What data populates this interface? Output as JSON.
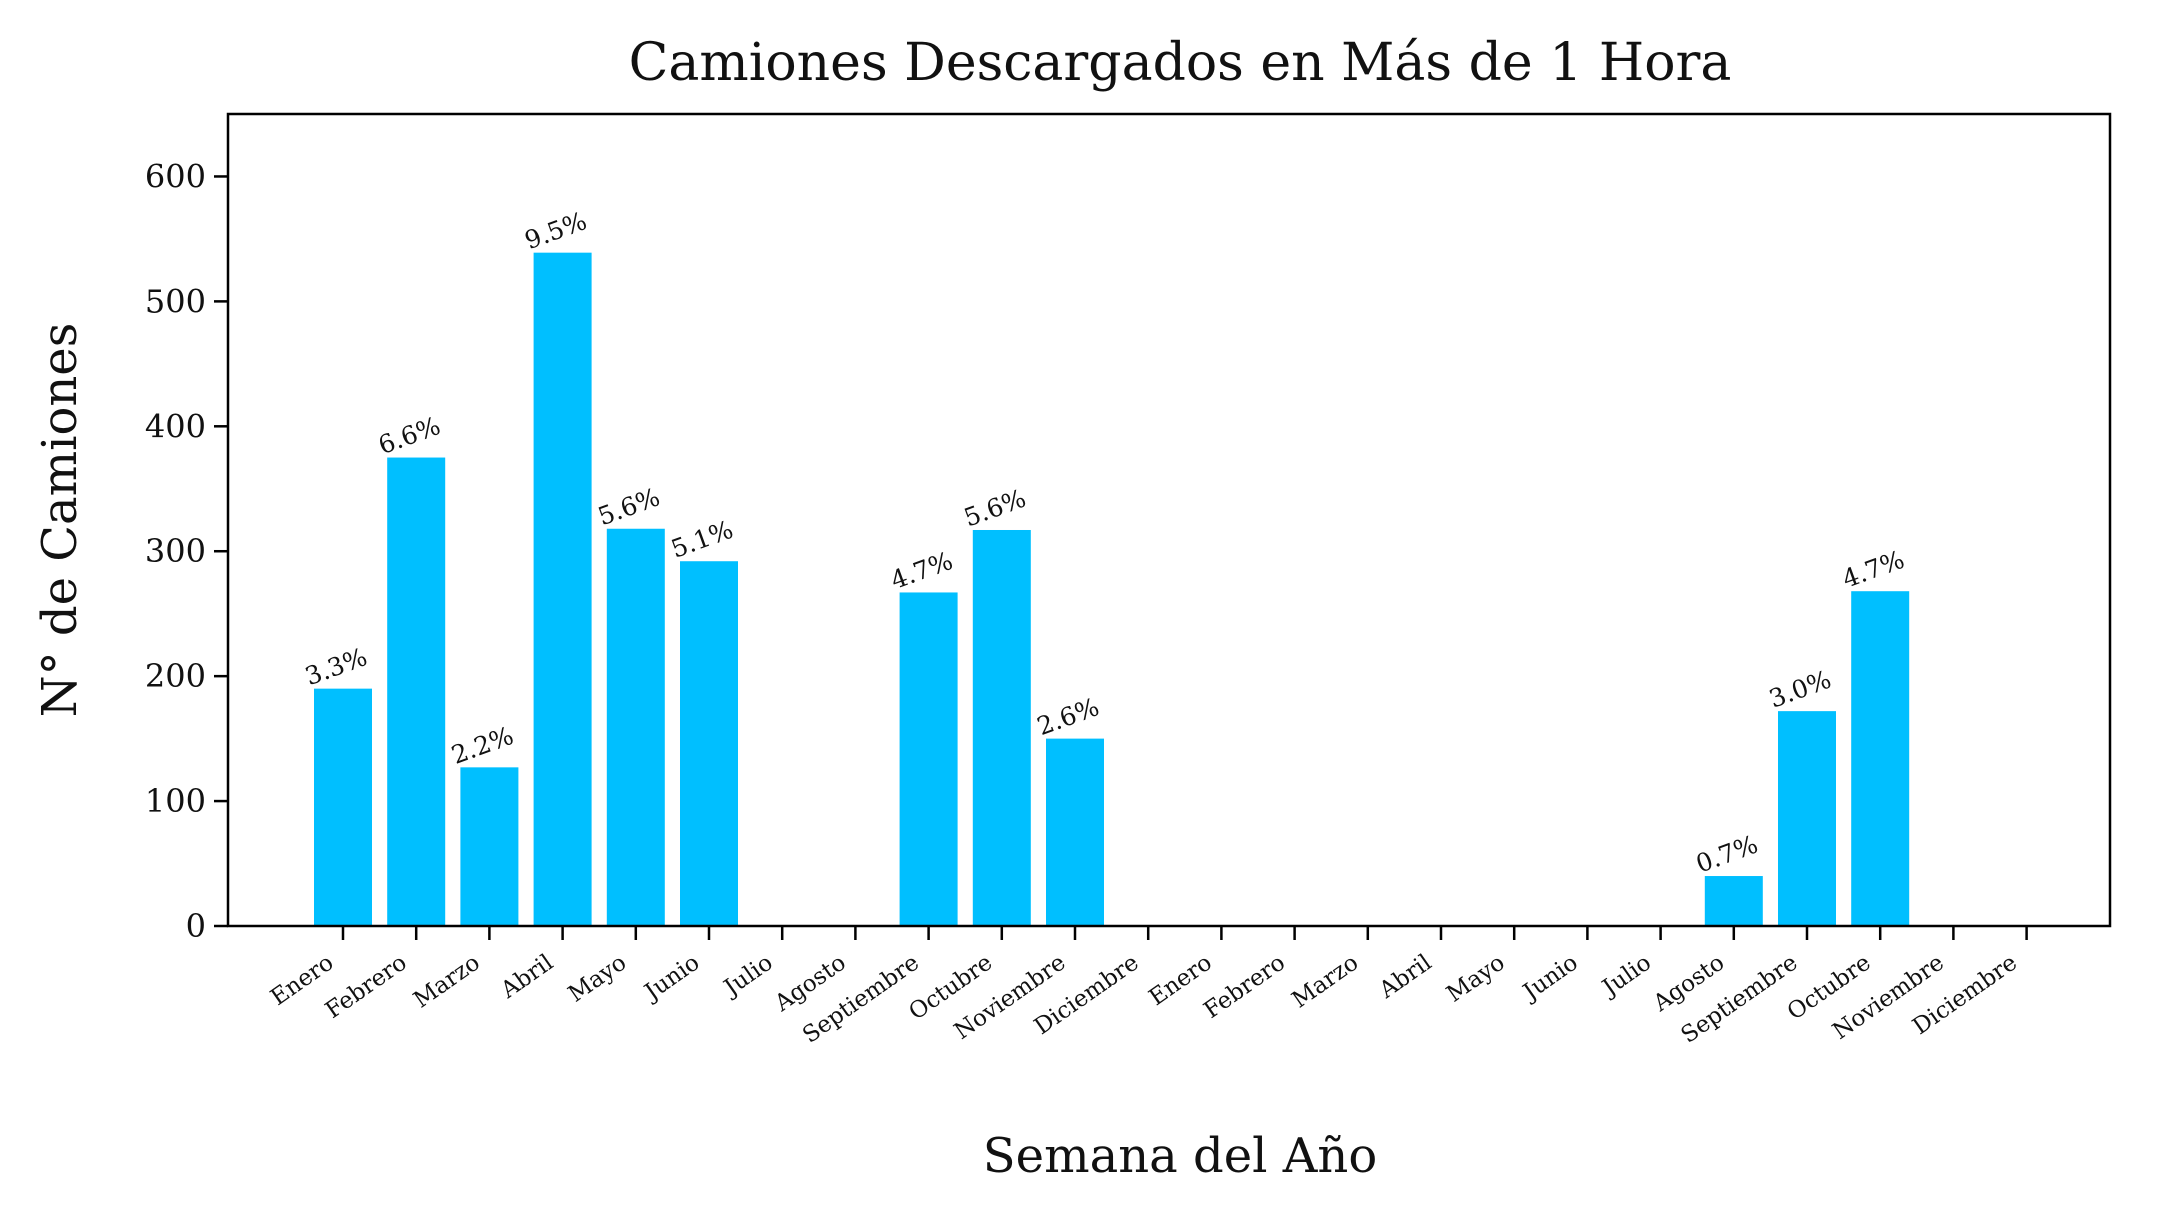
{
  "chart_data": {
    "type": "bar",
    "title": "Camiones Descargados en Más de 1 Hora",
    "xlabel": "Semana del Año",
    "ylabel": "N° de Camiones",
    "ylim": [
      0,
      650
    ],
    "yticks": [
      0,
      100,
      200,
      300,
      400,
      500,
      600
    ],
    "grid": false,
    "bar_color": "#00BFFF",
    "categories": [
      "Enero",
      "Febrero",
      "Marzo",
      "Abril",
      "Mayo",
      "Junio",
      "Julio",
      "Agosto",
      "Septiembre",
      "Octubre",
      "Noviembre",
      "Diciembre",
      "Enero",
      "Febrero",
      "Marzo",
      "Abril",
      "Mayo",
      "Junio",
      "Julio",
      "Agosto",
      "Septiembre",
      "Octubre",
      "Noviembre",
      "Diciembre"
    ],
    "values": [
      190,
      375,
      127,
      539,
      318,
      292,
      0,
      0,
      267,
      317,
      150,
      0,
      0,
      0,
      0,
      0,
      0,
      0,
      0,
      40,
      172,
      268,
      0,
      0
    ],
    "data_labels": [
      "3.3%",
      "6.6%",
      "2.2%",
      "9.5%",
      "5.6%",
      "5.1%",
      null,
      null,
      "4.7%",
      "5.6%",
      "2.6%",
      null,
      null,
      null,
      null,
      null,
      null,
      null,
      null,
      "0.7%",
      "3.0%",
      "4.7%",
      null,
      null
    ]
  }
}
